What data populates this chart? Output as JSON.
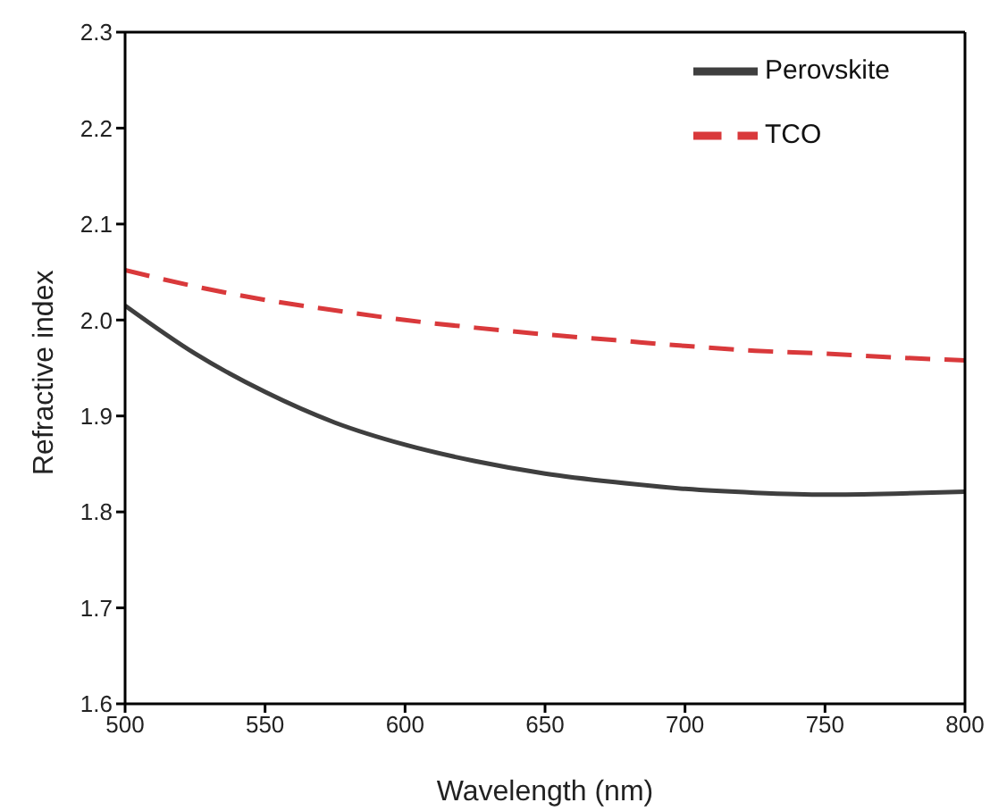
{
  "chart_data": {
    "type": "line",
    "xlabel": "Wavelength (nm)",
    "ylabel": "Refractive index",
    "x": [
      500,
      525,
      550,
      575,
      600,
      625,
      650,
      675,
      700,
      725,
      750,
      775,
      800
    ],
    "series": [
      {
        "name": "Perovskite",
        "color": "#3f3f3f",
        "line_style": "solid",
        "values": [
          2.015,
          1.965,
          1.925,
          1.893,
          1.87,
          1.853,
          1.84,
          1.831,
          1.824,
          1.82,
          1.818,
          1.819,
          1.821
        ]
      },
      {
        "name": "TCO",
        "color": "#d9393b",
        "line_style": "dashed",
        "values": [
          2.052,
          2.035,
          2.021,
          2.01,
          2.0,
          1.992,
          1.985,
          1.979,
          1.973,
          1.968,
          1.965,
          1.961,
          1.958
        ]
      }
    ],
    "xlim": [
      500,
      800
    ],
    "xticks": [
      500,
      550,
      600,
      650,
      700,
      750,
      800
    ],
    "ylim": [
      1.6,
      2.3
    ],
    "yticks": [
      1.6,
      1.7,
      1.8,
      1.9,
      {
        "value": 2,
        "label": "2.0"
      },
      2.1,
      2.2,
      2.3
    ],
    "legend": "top right",
    "grid": false,
    "marker": "none"
  }
}
